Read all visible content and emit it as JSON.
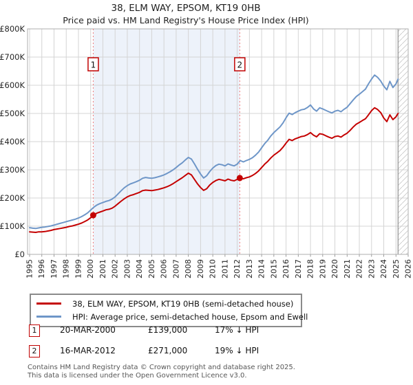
{
  "title": "38, ELM WAY, EPSOM, KT19 0HB",
  "subtitle": "Price paid vs. HM Land Registry's House Price Index (HPI)",
  "chart_data": {
    "type": "line",
    "title": "38, ELM WAY, EPSOM, KT19 0HB — Price paid vs. HPI",
    "x_axis": {
      "min": 1995,
      "max": 2026,
      "tick_labels": [
        "1995",
        "1996",
        "1997",
        "1998",
        "1999",
        "2000",
        "2001",
        "2002",
        "2003",
        "2004",
        "2005",
        "2006",
        "2007",
        "2008",
        "2009",
        "2010",
        "2011",
        "2012",
        "2013",
        "2014",
        "2015",
        "2016",
        "2017",
        "2018",
        "2019",
        "2020",
        "2021",
        "2022",
        "2023",
        "2024",
        "2025",
        "2026"
      ]
    },
    "y_axis": {
      "min": 0,
      "max": 800000,
      "ticks": [
        {
          "label": "£800K",
          "value": 800
        },
        {
          "label": "£700K",
          "value": 700
        },
        {
          "label": "£600K",
          "value": 600
        },
        {
          "label": "£500K",
          "value": 500
        },
        {
          "label": "£400K",
          "value": 400
        },
        {
          "label": "£300K",
          "value": 300
        },
        {
          "label": "£200K",
          "value": 200
        },
        {
          "label": "£100K",
          "value": 100
        },
        {
          "label": "£0",
          "value": 0
        }
      ]
    },
    "x_start": 1995,
    "x_step": 0.25,
    "x_end": 2025.17,
    "grid": true,
    "band_color": "#edf2fa",
    "grid_color": "#d4d4d4",
    "border_color": "#adadad",
    "dashed_line_color": "#ef7b7b",
    "hatch_color": "#c9c9c9",
    "series": [
      {
        "name": "HPI: Average price, semi-detached house, Epsom and Ewell",
        "color": "#6e96c8",
        "values_gbp_k": [
          95,
          93,
          92,
          94,
          96,
          97,
          99,
          101,
          104,
          107,
          110,
          113,
          116,
          119,
          122,
          125,
          129,
          134,
          140,
          147,
          157,
          167,
          175,
          180,
          184,
          188,
          191,
          196,
          204,
          215,
          226,
          236,
          244,
          250,
          254,
          258,
          263,
          270,
          273,
          271,
          270,
          272,
          275,
          278,
          282,
          287,
          293,
          300,
          308,
          317,
          325,
          335,
          344,
          338,
          321,
          302,
          285,
          271,
          279,
          294,
          306,
          315,
          320,
          318,
          314,
          321,
          317,
          314,
          320,
          333,
          328,
          333,
          337,
          343,
          352,
          363,
          378,
          393,
          405,
          420,
          432,
          442,
          452,
          466,
          485,
          501,
          496,
          503,
          508,
          513,
          515,
          521,
          530,
          516,
          508,
          520,
          516,
          511,
          506,
          502,
          508,
          511,
          506,
          515,
          522,
          535,
          548,
          560,
          568,
          577,
          586,
          605,
          622,
          636,
          628,
          615,
          597,
          584,
          614,
          592,
          605,
          622
        ]
      },
      {
        "name": "38, ELM WAY, EPSOM, KT19 0HB (semi-detached house)",
        "color": "#c40000",
        "values_gbp_k": [
          80,
          79,
          78,
          80,
          80,
          81,
          83,
          85,
          88,
          90,
          92,
          94,
          96,
          99,
          101,
          104,
          107,
          111,
          116,
          122,
          130,
          139,
          146,
          150,
          154,
          158,
          160,
          164,
          171,
          180,
          189,
          197,
          204,
          209,
          212,
          216,
          220,
          226,
          228,
          227,
          226,
          228,
          230,
          233,
          236,
          240,
          245,
          251,
          258,
          265,
          272,
          280,
          288,
          282,
          266,
          250,
          237,
          227,
          233,
          246,
          255,
          262,
          266,
          264,
          261,
          267,
          263,
          261,
          266,
          271,
          268,
          272,
          275,
          280,
          287,
          296,
          308,
          320,
          330,
          342,
          352,
          360,
          368,
          380,
          395,
          408,
          404,
          410,
          414,
          418,
          420,
          425,
          432,
          423,
          417,
          428,
          426,
          421,
          416,
          412,
          418,
          420,
          416,
          424,
          430,
          440,
          452,
          462,
          468,
          475,
          481,
          495,
          510,
          520,
          514,
          503,
          484,
          471,
          495,
          478,
          488,
          500
        ]
      }
    ],
    "sales": [
      {
        "n": "1",
        "year": 2000.21,
        "price_gbp": 139000
      },
      {
        "n": "2",
        "year": 2012.21,
        "price_gbp": 271000
      }
    ],
    "hatch_start_year": 2025.17
  },
  "legend": {
    "items": [
      {
        "label": "38, ELM WAY, EPSOM, KT19 0HB (semi-detached house)",
        "color": "#c40000"
      },
      {
        "label": "HPI: Average price, semi-detached house, Epsom and Ewell",
        "color": "#6e96c8"
      }
    ]
  },
  "annotations": [
    {
      "index": "1",
      "date": "20-MAR-2000",
      "price": "£139,000",
      "hpi_diff": "17% ↓ HPI"
    },
    {
      "index": "2",
      "date": "16-MAR-2012",
      "price": "£271,000",
      "hpi_diff": "19% ↓ HPI"
    }
  ],
  "footer": {
    "line1": "Contains HM Land Registry data © Crown copyright and database right 2025.",
    "line2": "This data is licensed under the Open Government Licence v3.0."
  }
}
